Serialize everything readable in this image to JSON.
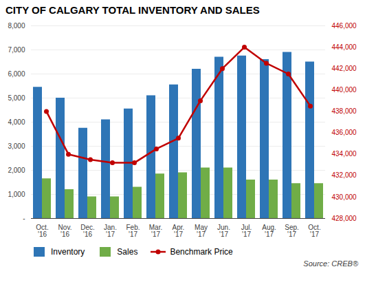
{
  "chart_data": {
    "type": "bar",
    "title": "CITY OF CALGARY TOTAL INVENTORY AND SALES",
    "categories": [
      "Oct.\n'16",
      "Nov.\n'16",
      "Dec.\n'16",
      "Jan.\n'17",
      "Feb.\n'17",
      "Mar.\n'17",
      "Apr.\n'17",
      "May\n'17",
      "Jun.\n'17",
      "Jul.\n'17",
      "Aug.\n'17",
      "Sep.\n'17",
      "Oct.\n'17"
    ],
    "series": [
      {
        "name": "Inventory",
        "color": "#2E75B6",
        "values": [
          5450,
          5000,
          3750,
          4100,
          4550,
          5100,
          5550,
          6200,
          6700,
          6750,
          6600,
          6900,
          6500
        ]
      },
      {
        "name": "Sales",
        "color": "#70AD47",
        "values": [
          1650,
          1200,
          900,
          900,
          1300,
          1850,
          1900,
          2100,
          2100,
          1600,
          1600,
          1450,
          1450
        ]
      },
      {
        "name": "Benchmark Price",
        "type": "line",
        "axis": "y2",
        "color": "#C00000",
        "marker": "circle",
        "values": [
          438000,
          434000,
          433500,
          433200,
          433200,
          434500,
          435500,
          439000,
          442000,
          444000,
          442500,
          441500,
          438500
        ]
      }
    ],
    "ylim": [
      0,
      8000
    ],
    "yticks": [
      {
        "value": 0,
        "label": "-"
      },
      {
        "value": 1000,
        "label": "1,000"
      },
      {
        "value": 2000,
        "label": "2,000"
      },
      {
        "value": 3000,
        "label": "3,000"
      },
      {
        "value": 4000,
        "label": "4,000"
      },
      {
        "value": 5000,
        "label": "5,000"
      },
      {
        "value": 6000,
        "label": "6,000"
      },
      {
        "value": 7000,
        "label": "7,000"
      },
      {
        "value": 8000,
        "label": "8,000"
      }
    ],
    "y2lim": [
      428000,
      446000
    ],
    "y2ticks": [
      {
        "value": 428000,
        "label": "428,000"
      },
      {
        "value": 430000,
        "label": "430,000"
      },
      {
        "value": 432000,
        "label": "432,000"
      },
      {
        "value": 434000,
        "label": "434,000"
      },
      {
        "value": 436000,
        "label": "436,000"
      },
      {
        "value": 438000,
        "label": "438,000"
      },
      {
        "value": 440000,
        "label": "440,000"
      },
      {
        "value": 442000,
        "label": "442,000"
      },
      {
        "value": 444000,
        "label": "444,000"
      },
      {
        "value": 446000,
        "label": "446,000"
      }
    ],
    "grid": true,
    "legend": "bottom",
    "annotations": [
      "Source: CREB®"
    ]
  }
}
